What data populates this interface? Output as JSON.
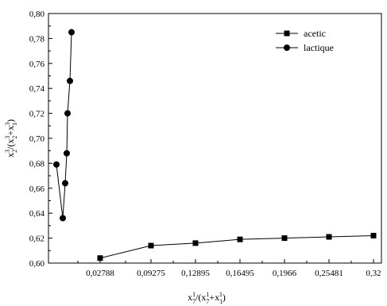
{
  "chart_data": {
    "type": "line",
    "xlabel": {
      "base": "x",
      "sub": "7",
      "sup": "1",
      "mid": "/(x",
      "sub2": "7",
      "sup2": "1",
      "plus": "+x",
      "sub3": "1",
      "sup3": "1",
      "end": ")"
    },
    "ylabel": {
      "base": "x",
      "sub": "2",
      "sup": "3",
      "mid": "/(x",
      "sub2": "2",
      "sup2": "3",
      "plus": "+x",
      "sub3": "1",
      "sup3": "3",
      "end": ")"
    },
    "x_tick_labels": [
      "0,02788",
      "0,09275",
      "0,12895",
      "0,16495",
      "0,1966",
      "0,25481",
      "0,32"
    ],
    "y_ticks": [
      0.6,
      0.62,
      0.64,
      0.66,
      0.68,
      0.7,
      0.72,
      0.74,
      0.76,
      0.78,
      0.8
    ],
    "y_tick_labels": [
      "0,60",
      "0,62",
      "0,64",
      "0,66",
      "0,68",
      "0,70",
      "0,72",
      "0,74",
      "0,76",
      "0,78",
      "0,80"
    ],
    "ylim": [
      0.6,
      0.8
    ],
    "grid": false,
    "legend_position": "top-right",
    "series": [
      {
        "name": "acetic",
        "marker": "square",
        "x": [
          0.02788,
          0.09275,
          0.12895,
          0.16495,
          0.1966,
          0.25481,
          0.32
        ],
        "y": [
          0.604,
          0.614,
          0.616,
          0.619,
          0.62,
          0.621,
          0.622
        ]
      },
      {
        "name": "lactique",
        "marker": "circle",
        "x": [
          0.001,
          0.004,
          0.005,
          0.006,
          0.007,
          0.008,
          0.009
        ],
        "y": [
          0.679,
          0.636,
          0.664,
          0.688,
          0.72,
          0.746,
          0.785
        ]
      }
    ]
  }
}
